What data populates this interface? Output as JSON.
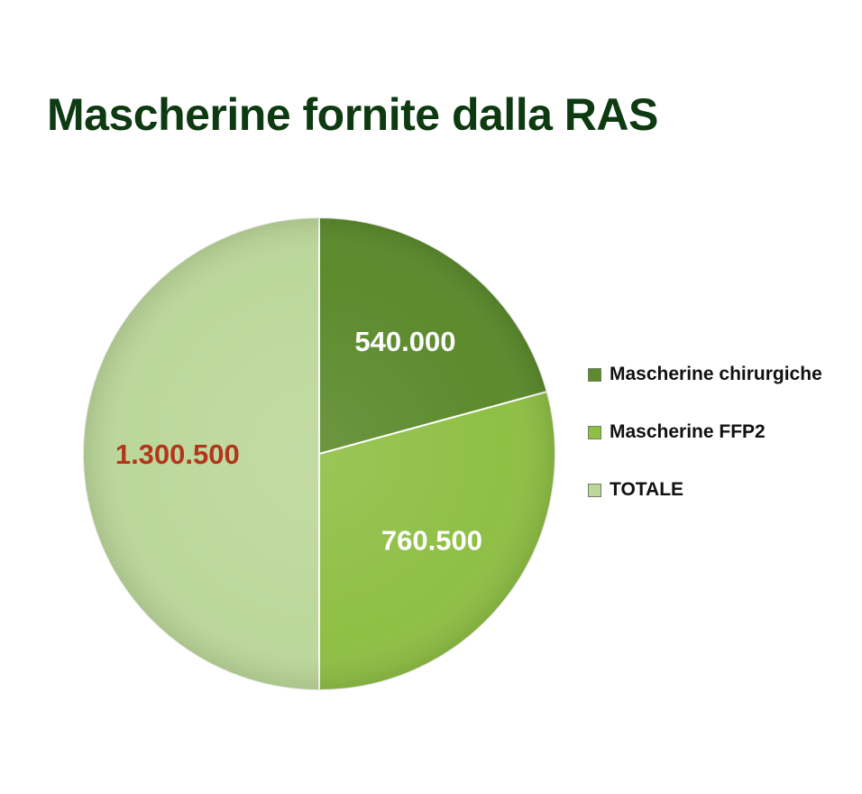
{
  "chart_data": {
    "type": "pie",
    "title": "Mascherine fornite dalla RAS",
    "slices": [
      {
        "label": "Mascherine chirurgiche",
        "value": 540000,
        "display": "540.000",
        "color": "#5c8a2c",
        "label_color": "#ffffff"
      },
      {
        "label": "Mascherine FFP2",
        "value": 760500,
        "display": "760.500",
        "color": "#8fbf45",
        "label_color": "#ffffff"
      },
      {
        "label": "TOTALE",
        "value": 1300500,
        "display": "1.300.500",
        "color": "#bcd79a",
        "label_color": "#b3361b"
      }
    ],
    "legend_position": "right"
  }
}
